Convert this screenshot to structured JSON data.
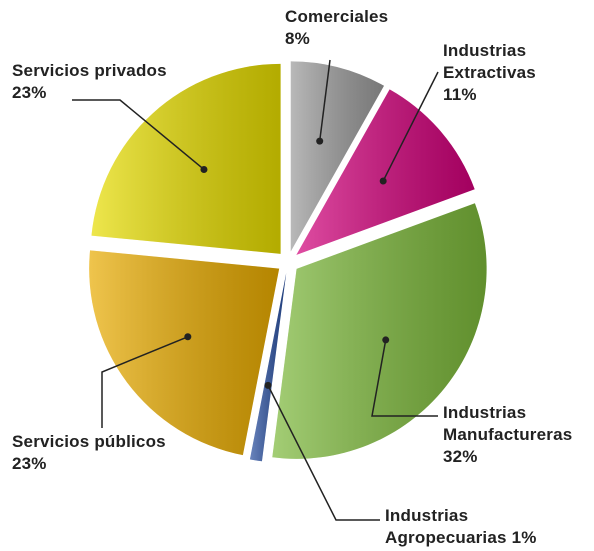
{
  "chart_data": {
    "type": "pie",
    "categories": [
      "Comerciales",
      "Industrias Extractivas",
      "Industrias Manufactureras",
      "Industrias Agropecuarias",
      "Servicios públicos",
      "Servicios privados"
    ],
    "values": [
      8,
      11,
      32,
      1,
      23,
      23
    ],
    "value_labels": [
      "8%",
      "11%",
      "32%",
      "1%",
      "23%",
      "23%"
    ],
    "colors": [
      "#9a9a9a",
      "#d1007a",
      "#7cb83a",
      "#2a50a0",
      "#e8ab00",
      "#e6dc00"
    ]
  }
}
